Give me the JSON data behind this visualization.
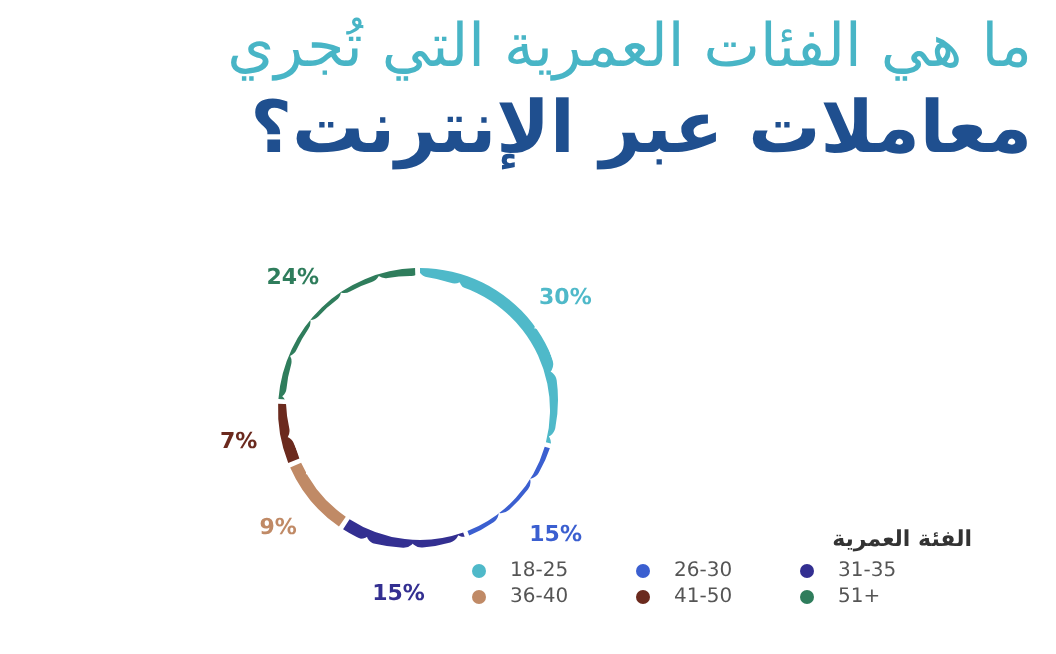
{
  "chart_data": {
    "type": "donut",
    "title": "ما هي الفئات العمرية التي تُجري",
    "subtitle": "معاملات عبر الإنترنت؟",
    "legend_title": "الفئة العمرية",
    "legend": "bottom right",
    "line_style": "dashed",
    "categories": [
      "18-25",
      "26-30",
      "31-35",
      "36-40",
      "41-50",
      "51+"
    ],
    "values": [
      30,
      15,
      15,
      9,
      7,
      24
    ],
    "value_labels": [
      "30%",
      "15%",
      "15%",
      "9%",
      "7%",
      "24%"
    ],
    "colors": [
      "#4fb9c9",
      "#3b5fd0",
      "#332f91",
      "#c08a66",
      "#6b2a1e",
      "#2f7d5c"
    ]
  }
}
